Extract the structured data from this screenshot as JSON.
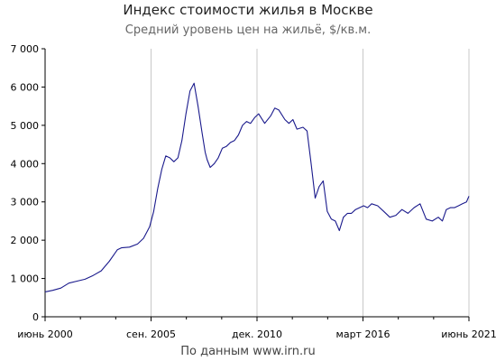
{
  "title": "Индекс стоимости жилья в Москве",
  "subtitle": "Средний уровень цен на жильё, $/кв.м.",
  "source": "По данным www.irn.ru",
  "chart_data": {
    "type": "line",
    "title": "Индекс стоимости жилья в Москве",
    "subtitle": "Средний уровень цен на жильё, $/кв.м.",
    "xlabel": "",
    "ylabel": "",
    "ylim": [
      0,
      7000
    ],
    "yticks": [
      0,
      1000,
      2000,
      3000,
      4000,
      5000,
      6000,
      7000
    ],
    "ytick_labels": [
      "0",
      "1 000",
      "2 000",
      "3 000",
      "4 000",
      "5 000",
      "6 000",
      "7 000"
    ],
    "xlim": [
      2000.42,
      2021.42
    ],
    "xticks": [
      2000.42,
      2005.67,
      2010.92,
      2016.17,
      2021.42
    ],
    "xtick_labels": [
      "июнь 2000",
      "сен. 2005",
      "дек. 2010",
      "март 2016",
      "июнь 2021"
    ],
    "minor_xticks": [
      2002.17,
      2003.92,
      2007.42,
      2009.17,
      2012.67,
      2014.42,
      2017.92,
      2019.67
    ],
    "grid": {
      "vertical": true,
      "horizontal": false
    },
    "line_color": "#1a1a8c",
    "series": [
      {
        "x": [
          2000.42,
          2000.8,
          2001.2,
          2001.6,
          2002.0,
          2002.4,
          2002.8,
          2003.2,
          2003.6,
          2004.0,
          2004.2,
          2004.6,
          2005.0,
          2005.3,
          2005.6,
          2005.8,
          2006.0,
          2006.2,
          2006.4,
          2006.6,
          2006.8,
          2007.0,
          2007.2,
          2007.4,
          2007.6,
          2007.8,
          2008.0,
          2008.2,
          2008.35,
          2008.45,
          2008.6,
          2008.8,
          2009.0,
          2009.2,
          2009.4,
          2009.6,
          2009.8,
          2010.0,
          2010.2,
          2010.4,
          2010.6,
          2010.8,
          2011.0,
          2011.3,
          2011.6,
          2011.8,
          2012.0,
          2012.3,
          2012.5,
          2012.7,
          2012.9,
          2013.2,
          2013.4,
          2013.6,
          2013.8,
          2014.0,
          2014.2,
          2014.4,
          2014.6,
          2014.8,
          2015.0,
          2015.2,
          2015.4,
          2015.6,
          2015.8,
          2016.0,
          2016.2,
          2016.4,
          2016.6,
          2016.9,
          2017.2,
          2017.5,
          2017.8,
          2018.1,
          2018.4,
          2018.7,
          2019.0,
          2019.3,
          2019.6,
          2019.9,
          2020.1,
          2020.3,
          2020.5,
          2020.7,
          2020.9,
          2021.1,
          2021.3,
          2021.42
        ],
        "y": [
          650,
          690,
          750,
          880,
          930,
          980,
          1080,
          1200,
          1450,
          1750,
          1800,
          1820,
          1900,
          2050,
          2350,
          2750,
          3350,
          3850,
          4200,
          4150,
          4050,
          4150,
          4600,
          5300,
          5900,
          6100,
          5500,
          4800,
          4300,
          4100,
          3900,
          4000,
          4150,
          4400,
          4450,
          4550,
          4600,
          4750,
          5000,
          5100,
          5050,
          5200,
          5300,
          5050,
          5250,
          5450,
          5400,
          5150,
          5050,
          5150,
          4900,
          4950,
          4850,
          4000,
          3100,
          3400,
          3550,
          2750,
          2550,
          2500,
          2250,
          2600,
          2700,
          2700,
          2800,
          2850,
          2900,
          2850,
          2950,
          2900,
          2750,
          2600,
          2650,
          2800,
          2700,
          2850,
          2950,
          2550,
          2500,
          2600,
          2500,
          2800,
          2850,
          2850,
          2900,
          2950,
          3000,
          3150
        ]
      }
    ]
  }
}
